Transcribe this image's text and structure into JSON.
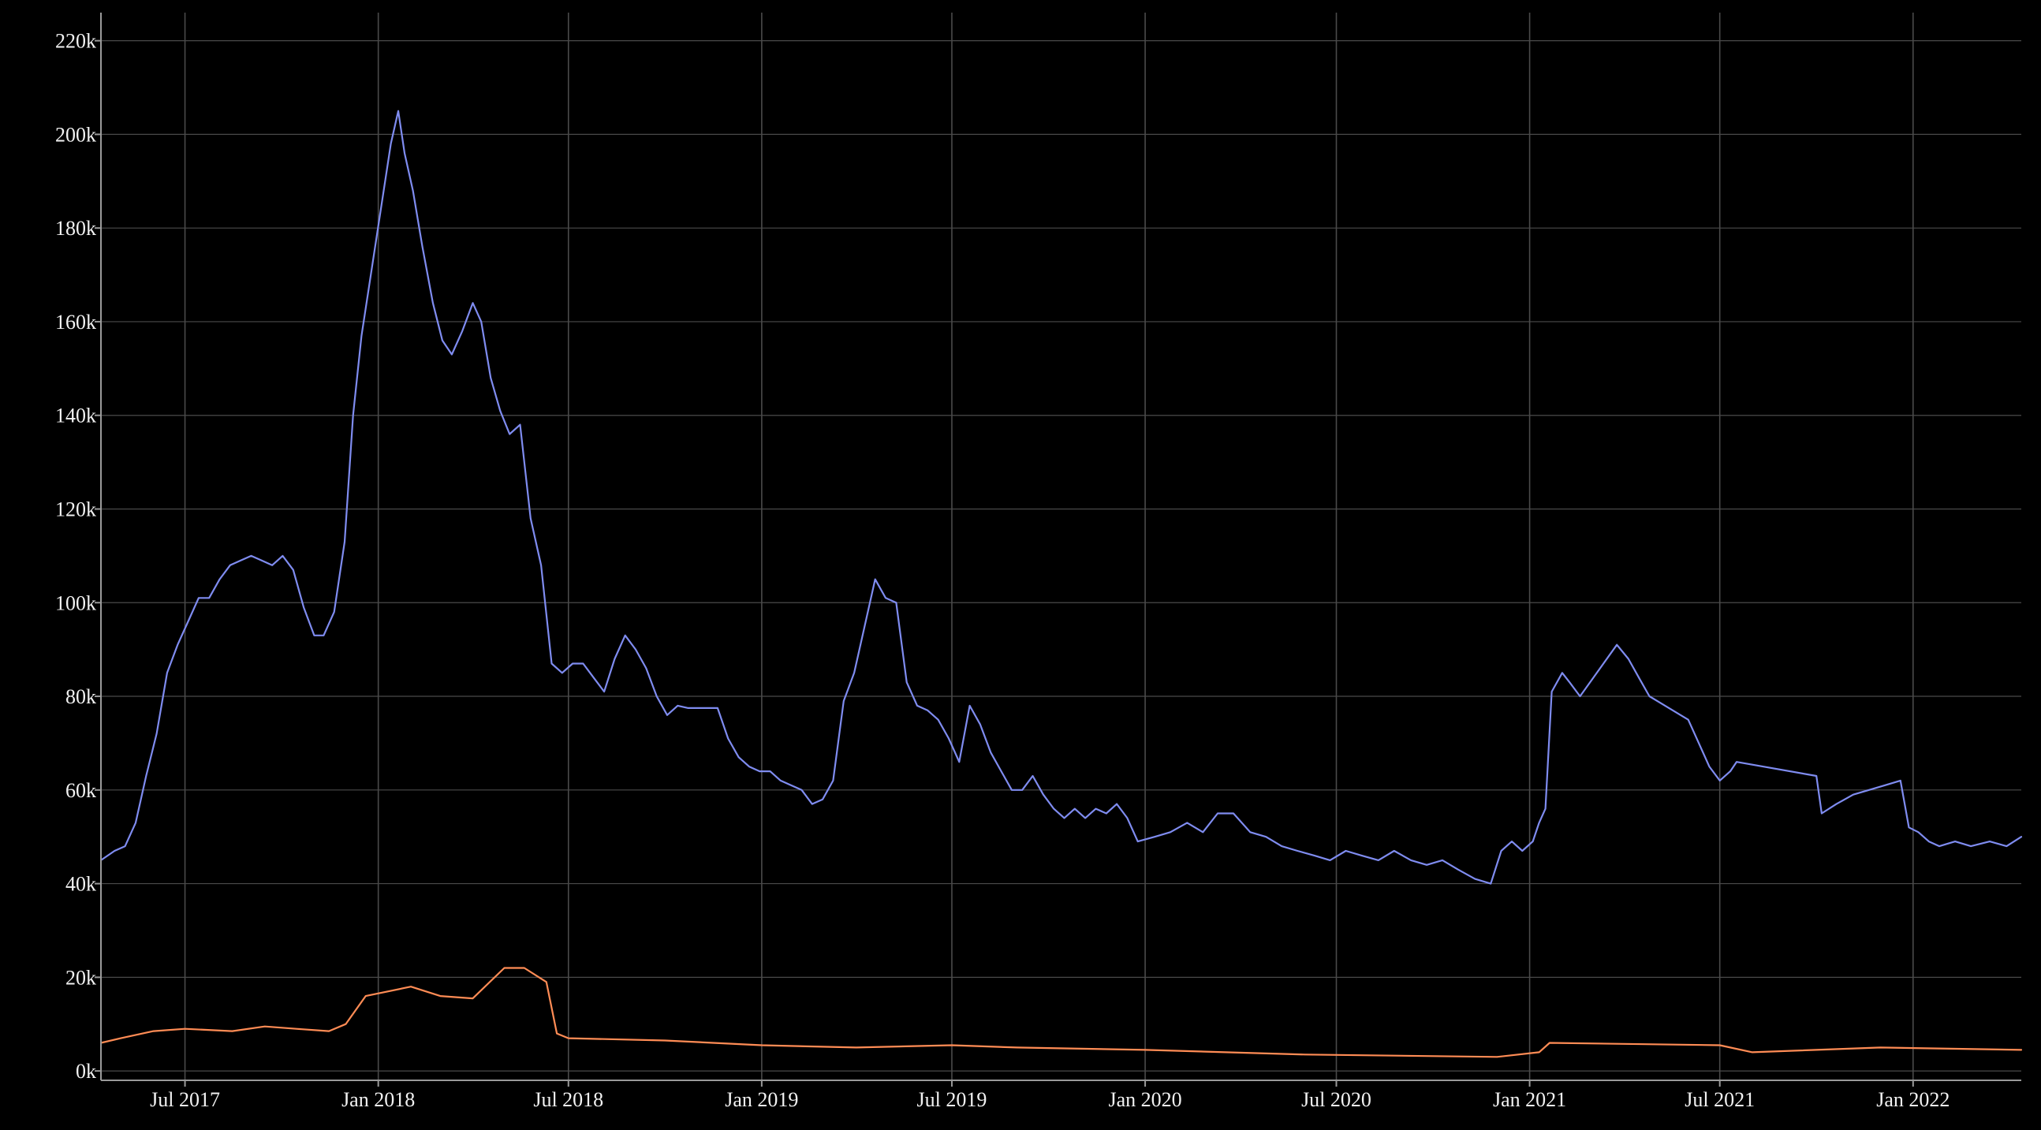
{
  "chart_data": {
    "type": "line",
    "title": "",
    "xlabel": "",
    "ylabel": "",
    "x_range": [
      "2017-04-12",
      "2022-04-14"
    ],
    "ylim": [
      -2000,
      226000
    ],
    "x_ticks": [
      {
        "label": "Jul 2017",
        "date": "2017-07-01"
      },
      {
        "label": "Jan 2018",
        "date": "2018-01-01"
      },
      {
        "label": "Jul 2018",
        "date": "2018-07-01"
      },
      {
        "label": "Jan 2019",
        "date": "2019-01-01"
      },
      {
        "label": "Jul 2019",
        "date": "2019-07-01"
      },
      {
        "label": "Jan 2020",
        "date": "2020-01-01"
      },
      {
        "label": "Jul 2020",
        "date": "2020-07-01"
      },
      {
        "label": "Jan 2021",
        "date": "2021-01-01"
      },
      {
        "label": "Jul 2021",
        "date": "2021-07-01"
      },
      {
        "label": "Jan 2022",
        "date": "2022-01-01"
      }
    ],
    "y_ticks": [
      {
        "label": "0k",
        "value": 0
      },
      {
        "label": "20k",
        "value": 20000
      },
      {
        "label": "40k",
        "value": 40000
      },
      {
        "label": "60k",
        "value": 60000
      },
      {
        "label": "80k",
        "value": 80000
      },
      {
        "label": "100k",
        "value": 100000
      },
      {
        "label": "120k",
        "value": 120000
      },
      {
        "label": "140k",
        "value": 140000
      },
      {
        "label": "160k",
        "value": 160000
      },
      {
        "label": "180k",
        "value": 180000
      },
      {
        "label": "200k",
        "value": 200000
      },
      {
        "label": "220k",
        "value": 220000
      }
    ],
    "grid": true,
    "colors": {
      "background": "#000000",
      "grid": "#4a4a4a",
      "axis": "#9a9a9a",
      "text": "#f2f2f2"
    },
    "series": [
      {
        "color": "#7f8cf0",
        "points": [
          [
            "2017-04-12",
            45000
          ],
          [
            "2017-04-25",
            47000
          ],
          [
            "2017-05-05",
            48000
          ],
          [
            "2017-05-15",
            53000
          ],
          [
            "2017-05-25",
            63000
          ],
          [
            "2017-06-04",
            72000
          ],
          [
            "2017-06-14",
            85000
          ],
          [
            "2017-06-24",
            91000
          ],
          [
            "2017-07-04",
            96000
          ],
          [
            "2017-07-14",
            101000
          ],
          [
            "2017-07-24",
            101000
          ],
          [
            "2017-08-03",
            105000
          ],
          [
            "2017-08-13",
            108000
          ],
          [
            "2017-08-23",
            109000
          ],
          [
            "2017-09-02",
            110000
          ],
          [
            "2017-09-12",
            109000
          ],
          [
            "2017-09-22",
            108000
          ],
          [
            "2017-10-02",
            110000
          ],
          [
            "2017-10-12",
            107000
          ],
          [
            "2017-10-22",
            99000
          ],
          [
            "2017-11-01",
            93000
          ],
          [
            "2017-11-10",
            93000
          ],
          [
            "2017-11-20",
            98000
          ],
          [
            "2017-11-30",
            113000
          ],
          [
            "2017-12-08",
            140000
          ],
          [
            "2017-12-16",
            157000
          ],
          [
            "2018-01-13",
            198000
          ],
          [
            "2018-01-20",
            205000
          ],
          [
            "2018-01-26",
            196000
          ],
          [
            "2018-02-03",
            188000
          ],
          [
            "2018-02-12",
            176000
          ],
          [
            "2018-02-22",
            164000
          ],
          [
            "2018-03-03",
            156000
          ],
          [
            "2018-03-12",
            153000
          ],
          [
            "2018-03-22",
            158000
          ],
          [
            "2018-04-01",
            164000
          ],
          [
            "2018-04-09",
            160000
          ],
          [
            "2018-04-18",
            148000
          ],
          [
            "2018-04-27",
            141000
          ],
          [
            "2018-05-06",
            136000
          ],
          [
            "2018-05-16",
            138000
          ],
          [
            "2018-05-26",
            118000
          ],
          [
            "2018-06-05",
            108000
          ],
          [
            "2018-06-15",
            87000
          ],
          [
            "2018-06-25",
            85000
          ],
          [
            "2018-07-05",
            87000
          ],
          [
            "2018-07-15",
            87000
          ],
          [
            "2018-07-25",
            84000
          ],
          [
            "2018-08-04",
            81000
          ],
          [
            "2018-08-14",
            88000
          ],
          [
            "2018-08-24",
            93000
          ],
          [
            "2018-09-03",
            90000
          ],
          [
            "2018-09-13",
            86000
          ],
          [
            "2018-09-23",
            80000
          ],
          [
            "2018-10-03",
            76000
          ],
          [
            "2018-10-13",
            78000
          ],
          [
            "2018-10-23",
            77500
          ],
          [
            "2018-11-20",
            77500
          ],
          [
            "2018-11-30",
            71000
          ],
          [
            "2018-12-10",
            67000
          ],
          [
            "2018-12-20",
            65000
          ],
          [
            "2018-12-30",
            64000
          ],
          [
            "2019-01-09",
            64000
          ],
          [
            "2019-01-19",
            62000
          ],
          [
            "2019-01-29",
            61000
          ],
          [
            "2019-02-08",
            60000
          ],
          [
            "2019-02-18",
            57000
          ],
          [
            "2019-02-28",
            58000
          ],
          [
            "2019-03-10",
            62000
          ],
          [
            "2019-03-20",
            79000
          ],
          [
            "2019-03-30",
            85000
          ],
          [
            "2019-04-09",
            95000
          ],
          [
            "2019-04-19",
            105000
          ],
          [
            "2019-04-29",
            101000
          ],
          [
            "2019-05-09",
            100000
          ],
          [
            "2019-05-19",
            83000
          ],
          [
            "2019-05-29",
            78000
          ],
          [
            "2019-06-08",
            77000
          ],
          [
            "2019-06-18",
            75000
          ],
          [
            "2019-06-28",
            71000
          ],
          [
            "2019-07-08",
            66000
          ],
          [
            "2019-07-18",
            78000
          ],
          [
            "2019-07-28",
            74000
          ],
          [
            "2019-08-07",
            68000
          ],
          [
            "2019-08-17",
            64000
          ],
          [
            "2019-08-27",
            60000
          ],
          [
            "2019-09-06",
            60000
          ],
          [
            "2019-09-16",
            63000
          ],
          [
            "2019-09-26",
            59000
          ],
          [
            "2019-10-06",
            56000
          ],
          [
            "2019-10-16",
            54000
          ],
          [
            "2019-10-26",
            56000
          ],
          [
            "2019-11-05",
            54000
          ],
          [
            "2019-11-15",
            56000
          ],
          [
            "2019-11-25",
            55000
          ],
          [
            "2019-12-05",
            57000
          ],
          [
            "2019-12-15",
            54000
          ],
          [
            "2019-12-25",
            49000
          ],
          [
            "2020-01-10",
            50000
          ],
          [
            "2020-01-25",
            51000
          ],
          [
            "2020-02-10",
            53000
          ],
          [
            "2020-02-25",
            51000
          ],
          [
            "2020-03-10",
            55000
          ],
          [
            "2020-03-25",
            55000
          ],
          [
            "2020-04-10",
            51000
          ],
          [
            "2020-04-25",
            50000
          ],
          [
            "2020-05-10",
            48000
          ],
          [
            "2020-05-25",
            47000
          ],
          [
            "2020-06-10",
            46000
          ],
          [
            "2020-06-25",
            45000
          ],
          [
            "2020-07-10",
            47000
          ],
          [
            "2020-07-25",
            46000
          ],
          [
            "2020-08-10",
            45000
          ],
          [
            "2020-08-25",
            47000
          ],
          [
            "2020-09-10",
            45000
          ],
          [
            "2020-09-25",
            44000
          ],
          [
            "2020-10-10",
            45000
          ],
          [
            "2020-10-25",
            43000
          ],
          [
            "2020-11-10",
            41000
          ],
          [
            "2020-11-25",
            40000
          ],
          [
            "2020-12-05",
            47000
          ],
          [
            "2020-12-15",
            49000
          ],
          [
            "2020-12-25",
            47000
          ],
          [
            "2021-01-04",
            49000
          ],
          [
            "2021-01-10",
            53000
          ],
          [
            "2021-01-16",
            56000
          ],
          [
            "2021-01-22",
            81000
          ],
          [
            "2021-02-01",
            85000
          ],
          [
            "2021-02-08",
            83000
          ],
          [
            "2021-02-18",
            80000
          ],
          [
            "2021-03-25",
            91000
          ],
          [
            "2021-04-05",
            88000
          ],
          [
            "2021-04-15",
            84000
          ],
          [
            "2021-04-25",
            80000
          ],
          [
            "2021-06-01",
            75000
          ],
          [
            "2021-06-11",
            70000
          ],
          [
            "2021-06-21",
            65000
          ],
          [
            "2021-07-01",
            62000
          ],
          [
            "2021-07-11",
            64000
          ],
          [
            "2021-07-17",
            66000
          ],
          [
            "2021-10-01",
            63000
          ],
          [
            "2021-10-06",
            55000
          ],
          [
            "2021-10-20",
            57000
          ],
          [
            "2021-11-05",
            59000
          ],
          [
            "2021-11-20",
            60000
          ],
          [
            "2021-12-05",
            61000
          ],
          [
            "2021-12-20",
            62000
          ],
          [
            "2021-12-28",
            52000
          ],
          [
            "2022-01-06",
            51000
          ],
          [
            "2022-01-16",
            49000
          ],
          [
            "2022-01-26",
            48000
          ],
          [
            "2022-02-10",
            49000
          ],
          [
            "2022-02-25",
            48000
          ],
          [
            "2022-03-15",
            49000
          ],
          [
            "2022-03-31",
            48000
          ],
          [
            "2022-04-14",
            50000
          ]
        ]
      },
      {
        "color": "#ff8c55",
        "points": [
          [
            "2017-04-12",
            6000
          ],
          [
            "2017-05-01",
            7000
          ],
          [
            "2017-06-01",
            8500
          ],
          [
            "2017-07-01",
            9000
          ],
          [
            "2017-08-15",
            8500
          ],
          [
            "2017-09-15",
            9500
          ],
          [
            "2017-10-15",
            9000
          ],
          [
            "2017-11-15",
            8500
          ],
          [
            "2017-12-01",
            10000
          ],
          [
            "2017-12-20",
            16000
          ],
          [
            "2018-02-01",
            18000
          ],
          [
            "2018-03-01",
            16000
          ],
          [
            "2018-04-01",
            15500
          ],
          [
            "2018-05-01",
            22000
          ],
          [
            "2018-05-20",
            22000
          ],
          [
            "2018-06-10",
            19000
          ],
          [
            "2018-06-20",
            8000
          ],
          [
            "2018-07-01",
            7000
          ],
          [
            "2018-10-01",
            6500
          ],
          [
            "2019-01-01",
            5500
          ],
          [
            "2019-04-01",
            5000
          ],
          [
            "2019-07-01",
            5500
          ],
          [
            "2019-09-01",
            5000
          ],
          [
            "2020-01-01",
            4500
          ],
          [
            "2020-06-01",
            3500
          ],
          [
            "2020-12-01",
            3000
          ],
          [
            "2021-01-10",
            4000
          ],
          [
            "2021-01-20",
            6000
          ],
          [
            "2021-07-01",
            5500
          ],
          [
            "2021-08-01",
            4000
          ],
          [
            "2021-12-01",
            5000
          ],
          [
            "2022-04-14",
            4500
          ]
        ]
      }
    ]
  }
}
